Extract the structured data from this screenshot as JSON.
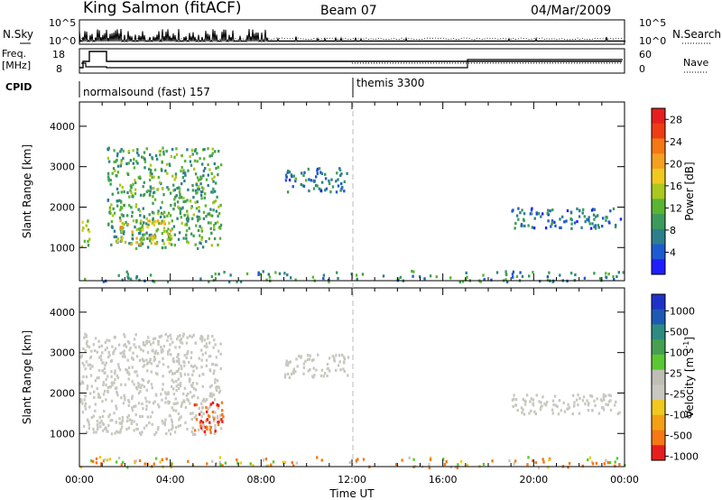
{
  "header": {
    "station": "King Salmon (fitACF)",
    "beam": "Beam 07",
    "date": "04/Mar/2009"
  },
  "noise_panel": {
    "left_label": "N.Sky",
    "right_label": "N.Search",
    "tick_top": "10^5",
    "tick_bottom": "10^0"
  },
  "freq_panel": {
    "left_label_line1": "Freq.",
    "left_label_line2": "[MHz]",
    "left_ticks": [
      "18",
      "8"
    ],
    "right_label": "Nave",
    "right_ticks": [
      "60",
      "0"
    ]
  },
  "cpid_panel": {
    "label": "CPID",
    "modes": [
      {
        "name": "normalsound (fast) 157",
        "start_hour": 0
      },
      {
        "name": "themis 3300",
        "start_hour": 12
      }
    ]
  },
  "colors": {
    "power": [
      "#1e1eff",
      "#1e5ad2",
      "#2d7f8c",
      "#3c9b5a",
      "#5ab432",
      "#aac81e",
      "#f0c81e",
      "#f5a01e",
      "#f57814",
      "#ee3c14",
      "#e61e1e"
    ],
    "velocity": [
      "#1e32c8",
      "#1e5ab4",
      "#2d8c82",
      "#46a050",
      "#5ac832",
      "#bebeb4",
      "#c8c8be",
      "#f0c81e",
      "#f5a014",
      "#f57814",
      "#e61e1e"
    ],
    "grey_scatter": "#c8c8c0"
  },
  "chart_data": [
    {
      "type": "heatmap",
      "title": "Power",
      "xlabel": "Time UT",
      "ylabel": "Slant Range [km]",
      "x_ticks": [
        "00:00",
        "04:00",
        "08:00",
        "12:00",
        "16:00",
        "20:00",
        "00:00"
      ],
      "xlim_hours": [
        0,
        24
      ],
      "y_ticks": [
        "1000",
        "2000",
        "3000",
        "4000"
      ],
      "ylim_km": [
        180,
        4600
      ],
      "colorbar": {
        "label": "Power [dB]",
        "ticks": [
          "4",
          "8",
          "12",
          "16",
          "20",
          "24",
          "28"
        ],
        "range": [
          0,
          30
        ]
      },
      "echo_regions": [
        {
          "t": [
            0.0,
            0.4
          ],
          "r": [
            950,
            1850
          ],
          "value": 14
        },
        {
          "t": [
            1.2,
            6.2
          ],
          "r": [
            1000,
            3500
          ],
          "value": 10
        },
        {
          "t": [
            1.5,
            4.0
          ],
          "r": [
            1100,
            1700
          ],
          "value": 18
        },
        {
          "t": [
            9.0,
            11.8
          ],
          "r": [
            2400,
            3000
          ],
          "value": 6
        },
        {
          "t": [
            19.0,
            23.8
          ],
          "r": [
            1500,
            2000
          ],
          "value": 5
        },
        {
          "t": [
            0.0,
            24.0
          ],
          "r": [
            180,
            450
          ],
          "value": 8
        }
      ]
    },
    {
      "type": "heatmap",
      "title": "Velocity",
      "xlabel": "Time UT",
      "ylabel": "Slant Range [km]",
      "x_ticks": [
        "00:00",
        "04:00",
        "08:00",
        "12:00",
        "16:00",
        "20:00",
        "00:00"
      ],
      "xlim_hours": [
        0,
        24
      ],
      "y_ticks": [
        "1000",
        "2000",
        "3000",
        "4000"
      ],
      "ylim_km": [
        180,
        4600
      ],
      "colorbar": {
        "label": "Velocity [m s",
        "label_sup": "-1",
        "label_close": "]",
        "ticks": [
          "1000",
          "500",
          "100",
          "25",
          "-25",
          "-100",
          "-500",
          "-1000"
        ]
      },
      "echo_regions": [
        {
          "t": [
            0.0,
            6.2
          ],
          "r": [
            1000,
            3500
          ],
          "value": 0
        },
        {
          "t": [
            5.0,
            6.3
          ],
          "r": [
            1000,
            1800
          ],
          "value": -500
        },
        {
          "t": [
            9.0,
            11.8
          ],
          "r": [
            2400,
            3000
          ],
          "value": 0
        },
        {
          "t": [
            19.0,
            23.8
          ],
          "r": [
            1500,
            2000
          ],
          "value": 0
        },
        {
          "t": [
            0.0,
            24.0
          ],
          "r": [
            180,
            450
          ],
          "value": -80
        }
      ]
    }
  ],
  "xaxis_title": "Time UT"
}
